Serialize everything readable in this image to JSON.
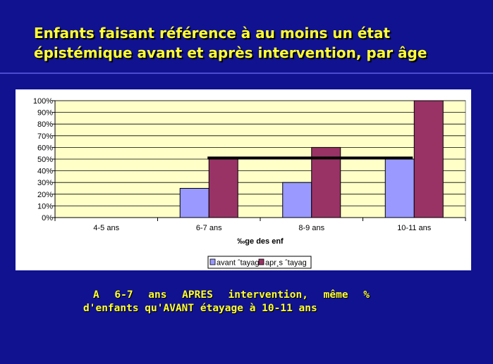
{
  "slide": {
    "title_line1": "Enfants faisant référence à au moins un état",
    "title_line2": "épistémique avant et après intervention, par âge",
    "note_line1": "A 6-7 ans APRES intervention, même %",
    "note_line2": "d'enfants qu'AVANT étayage à 10-11 ans"
  },
  "colors": {
    "background": "#10128f",
    "title": "#ffff33",
    "plot_area": "#ffffc8",
    "series_before": "#9999ff",
    "series_after": "#993366",
    "reference_line": "#000000"
  },
  "chart_data": {
    "type": "bar",
    "categories": [
      "4-5 ans",
      "6-7 ans",
      "8-9 ans",
      "10-11 ans"
    ],
    "series": [
      {
        "name": "avant ˆtayag",
        "values": [
          0,
          25,
          30,
          50
        ]
      },
      {
        "name": "apr¸s ˆtayag",
        "values": [
          0,
          50,
          60,
          100
        ]
      }
    ],
    "yticks": [
      "0%",
      "10%",
      "20%",
      "30%",
      "40%",
      "50%",
      "60%",
      "70%",
      "80%",
      "90%",
      "100%"
    ],
    "ylim": [
      0,
      100
    ],
    "xlabel": "‰ge des enf",
    "reference_line": {
      "value": 51,
      "from_category": "6-7 ans",
      "to_category": "10-11 ans"
    },
    "grid": true,
    "legend": "bottom-right"
  }
}
